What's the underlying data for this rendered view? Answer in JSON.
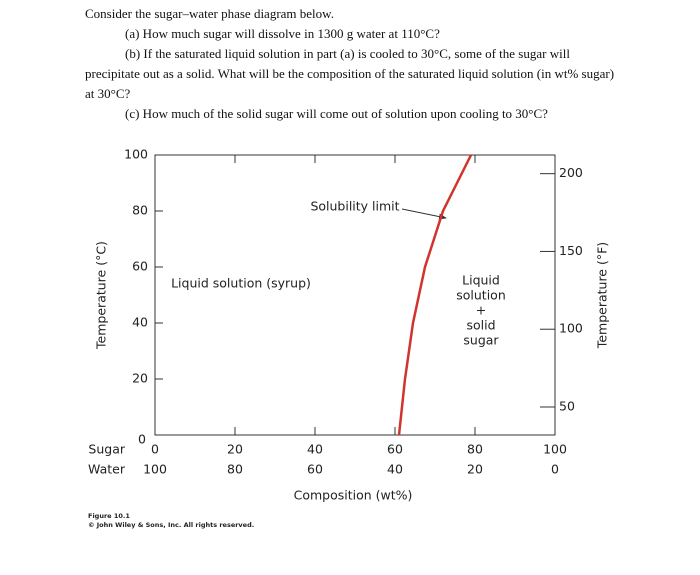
{
  "question": {
    "intro": "Consider the sugar–water phase diagram below.",
    "a": "(a) How much sugar will dissolve in 1300 g water at 110°C?",
    "b": "(b) If the saturated liquid solution in part (a) is cooled to 30°C, some of the sugar will precipitate out as a solid.  What will be the composition of the saturated liquid solution (in wt% sugar) at 30°C?",
    "c": "(c) How much of the solid sugar will come out of solution upon cooling to 30°C?"
  },
  "chart_data": {
    "type": "line",
    "x_label": "Composition (wt%)",
    "y_label": "Temperature (°C)",
    "y2_label": "Temperature (°F)",
    "xtick_row_labels": [
      "Sugar",
      "Water"
    ],
    "xlim": [
      0,
      100
    ],
    "xticks": [
      0,
      20,
      40,
      60,
      80,
      100
    ],
    "x2lim": [
      100,
      0
    ],
    "x2ticks": [
      100,
      80,
      60,
      40,
      20,
      0
    ],
    "ylim": [
      0,
      100
    ],
    "yticks": [
      0,
      20,
      40,
      60,
      80,
      100
    ],
    "y2lim": [
      32,
      212
    ],
    "y2ticks": [
      50,
      100,
      150,
      200
    ],
    "series": [
      {
        "name": "Solubility limit",
        "color": "#d0342c",
        "x": [
          61,
          62.5,
          64.5,
          67.5,
          72,
          79
        ],
        "values": [
          0,
          20,
          40,
          60,
          80,
          100
        ]
      }
    ],
    "annotations": [
      "Liquid solution (syrup)",
      "Liquid",
      "solution",
      "+",
      "solid",
      "sugar"
    ],
    "caption": "Figure 10.1",
    "credit": "© John Wiley & Sons, Inc. All rights reserved."
  }
}
